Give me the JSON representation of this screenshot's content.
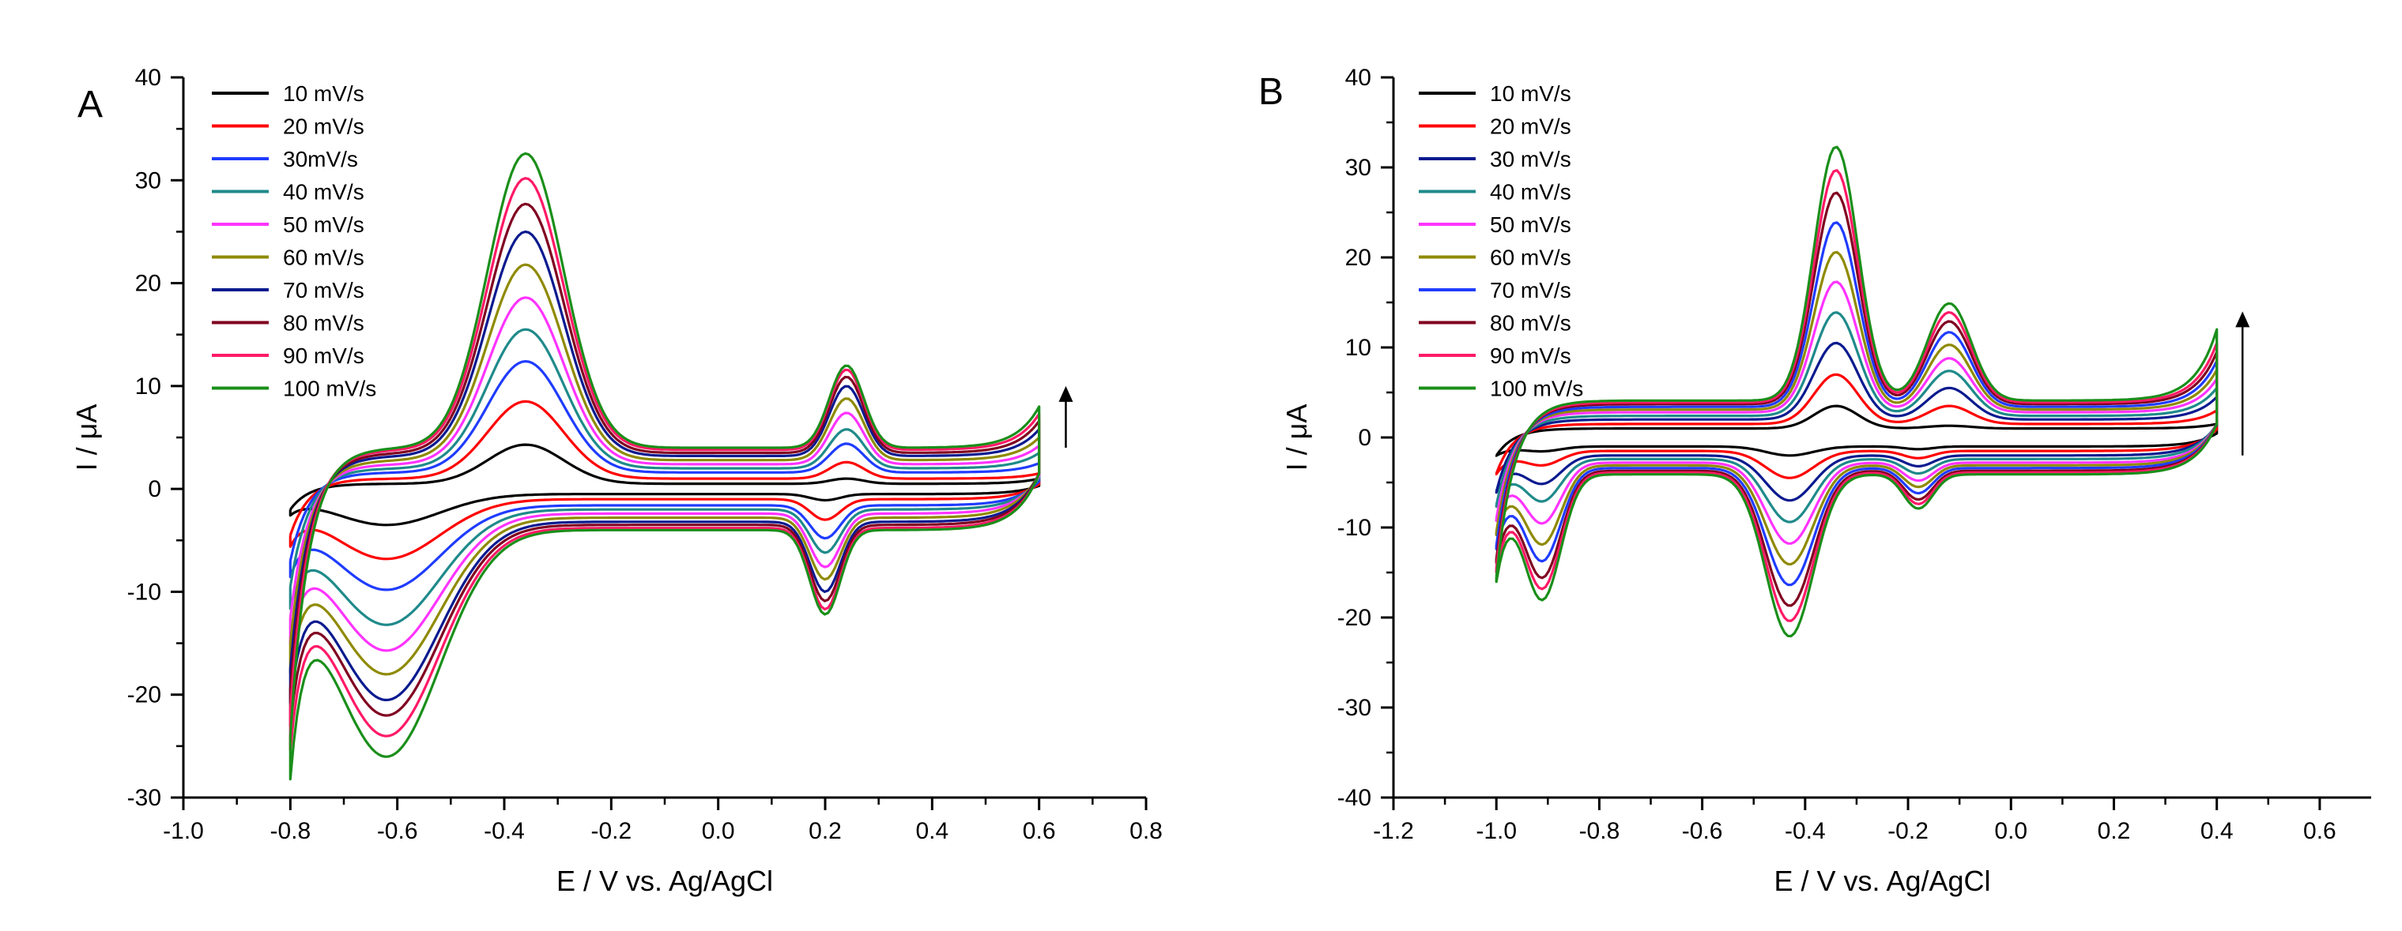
{
  "chart_data": [
    {
      "type": "line",
      "panel_label": "A",
      "xlabel": "E / V vs. Ag/AgCl",
      "ylabel": "I / μA",
      "xlim": [
        -1.0,
        0.8
      ],
      "ylim": [
        -30,
        40
      ],
      "x_ticks": [
        -1.0,
        -0.8,
        -0.6,
        -0.4,
        -0.2,
        0.0,
        0.2,
        0.4,
        0.6,
        0.8
      ],
      "x_tick_labels": [
        "-1.0",
        "-0.8",
        "-0.6",
        "-0.4",
        "-0.2",
        "0.0",
        "0.2",
        "0.4",
        "0.6",
        "0.8"
      ],
      "y_ticks": [
        -30,
        -20,
        -10,
        0,
        10,
        20,
        30,
        40
      ],
      "y_tick_labels": [
        "-30",
        "-20",
        "-10",
        "0",
        "10",
        "20",
        "30",
        "40"
      ],
      "legend_position": "top-left",
      "annotation": "arrow up: increasing scan rate",
      "arrow": {
        "x": 0.65,
        "y_from": 4,
        "y_to": 10
      },
      "potential_window": [
        -0.8,
        0.6
      ],
      "peaks": {
        "anodic_1": {
          "E": -0.36,
          "width": 0.1
        },
        "anodic_2": {
          "E": 0.24,
          "width": 0.045
        },
        "cathodic_1": {
          "E": -0.62,
          "width": 0.14
        },
        "cathodic_2": {
          "E": 0.2,
          "width": 0.04
        }
      },
      "series": [
        {
          "name": "10 mV/s",
          "color": "#000000",
          "cap": 0.5,
          "anodic_1": 3.8,
          "anodic_2": 0.5,
          "cathodic_1": -3.0,
          "cathodic_2": -0.6,
          "start_i": -2.0,
          "end_i": 1.0
        },
        {
          "name": "20 mV/s",
          "color": "#ff0000",
          "cap": 1.0,
          "anodic_1": 7.5,
          "anodic_2": 1.6,
          "cathodic_1": -5.8,
          "cathodic_2": -2.0,
          "start_i": -4.5,
          "end_i": 1.5
        },
        {
          "name": "30mV/s",
          "color": "#1f3cff",
          "cap": 1.6,
          "anodic_1": 10.8,
          "anodic_2": 2.8,
          "cathodic_1": -8.2,
          "cathodic_2": -3.2,
          "start_i": -7.0,
          "end_i": 2.5
        },
        {
          "name": "40 mV/s",
          "color": "#1f8a8a",
          "cap": 2.0,
          "anodic_1": 13.5,
          "anodic_2": 3.8,
          "cathodic_1": -11.2,
          "cathodic_2": -4.2,
          "start_i": -9.5,
          "end_i": 3.5
        },
        {
          "name": "50 mV/s",
          "color": "#ff33ff",
          "cap": 2.4,
          "anodic_1": 16.2,
          "anodic_2": 5.0,
          "cathodic_1": -13.3,
          "cathodic_2": -5.2,
          "start_i": -12.5,
          "end_i": 4.2
        },
        {
          "name": "60 mV/s",
          "color": "#8f8a00",
          "cap": 2.8,
          "anodic_1": 19.0,
          "anodic_2": 6.0,
          "cathodic_1": -15.2,
          "cathodic_2": -6.0,
          "start_i": -15.0,
          "end_i": 5.0
        },
        {
          "name": "70 mV/s",
          "color": "#0a1a8f",
          "cap": 3.2,
          "anodic_1": 21.8,
          "anodic_2": 6.8,
          "cathodic_1": -17.3,
          "cathodic_2": -6.8,
          "start_i": -17.5,
          "end_i": 5.8
        },
        {
          "name": "80 mV/s",
          "color": "#800020",
          "cap": 3.5,
          "anodic_1": 24.2,
          "anodic_2": 7.4,
          "cathodic_1": -18.5,
          "cathodic_2": -7.4,
          "start_i": -19.5,
          "end_i": 6.6
        },
        {
          "name": "90 mV/s",
          "color": "#ff1a66",
          "cap": 3.8,
          "anodic_1": 26.4,
          "anodic_2": 7.8,
          "cathodic_1": -20.2,
          "cathodic_2": -7.9,
          "start_i": -21.5,
          "end_i": 7.3
        },
        {
          "name": "100 mV/s",
          "color": "#1a8f1a",
          "cap": 4.0,
          "anodic_1": 28.6,
          "anodic_2": 8.0,
          "cathodic_1": -22.0,
          "cathodic_2": -8.2,
          "start_i": -24.0,
          "end_i": 8.0
        }
      ]
    },
    {
      "type": "line",
      "panel_label": "B",
      "xlabel": "E / V vs. Ag/AgCl",
      "ylabel": "I / μA",
      "xlim": [
        -1.2,
        0.7
      ],
      "ylim": [
        -40,
        40
      ],
      "x_ticks": [
        -1.2,
        -1.0,
        -0.8,
        -0.6,
        -0.4,
        -0.2,
        0.0,
        0.2,
        0.4,
        0.6
      ],
      "x_tick_labels": [
        "-1.2",
        "-1.0",
        "-0.8",
        "-0.6",
        "-0.4",
        "-0.2",
        "0.0",
        "0.2",
        "0.4",
        "0.6"
      ],
      "y_ticks": [
        -40,
        -30,
        -20,
        -10,
        0,
        10,
        20,
        30,
        40
      ],
      "y_tick_labels": [
        "-40",
        "-30",
        "-20",
        "-10",
        "0",
        "10",
        "20",
        "30",
        "40"
      ],
      "legend_position": "top-left",
      "annotation": "arrow up: increasing scan rate",
      "arrow": {
        "x": 0.45,
        "y_from": -2,
        "y_to": 14
      },
      "potential_window": [
        -1.0,
        0.4
      ],
      "peaks": {
        "anodic_1": {
          "E": -0.34,
          "width": 0.06
        },
        "anodic_2": {
          "E": -0.12,
          "width": 0.06
        },
        "cathodic_1": {
          "E": -0.43,
          "width": 0.065
        },
        "cathodic_2": {
          "E": -0.91,
          "width": 0.05
        },
        "cathodic_3": {
          "E": -0.18,
          "width": 0.04
        }
      },
      "series": [
        {
          "name": "10 mV/s",
          "color": "#000000",
          "cap": 1.0,
          "anodic_1": 2.5,
          "anodic_2": 0.3,
          "cathodic_1": -1.0,
          "cathodic_2": -0.5,
          "cathodic_3": -0.3,
          "start_i": -2.0,
          "end_i": 1.5
        },
        {
          "name": "20 mV/s",
          "color": "#ff0000",
          "cap": 1.5,
          "anodic_1": 5.5,
          "anodic_2": 2.0,
          "cathodic_1": -3.0,
          "cathodic_2": -1.5,
          "cathodic_3": -0.8,
          "start_i": -4.0,
          "end_i": 3.0
        },
        {
          "name": "30 mV/s",
          "color": "#0a1a8f",
          "cap": 2.0,
          "anodic_1": 8.5,
          "anodic_2": 3.5,
          "cathodic_1": -5.0,
          "cathodic_2": -3.0,
          "cathodic_3": -1.2,
          "start_i": -6.0,
          "end_i": 4.5
        },
        {
          "name": "40 mV/s",
          "color": "#1f8a8a",
          "cap": 2.4,
          "anodic_1": 11.5,
          "anodic_2": 5.0,
          "cathodic_1": -7.0,
          "cathodic_2": -4.5,
          "cathodic_3": -1.6,
          "start_i": -7.5,
          "end_i": 5.5
        },
        {
          "name": "50 mV/s",
          "color": "#ff33ff",
          "cap": 2.8,
          "anodic_1": 14.5,
          "anodic_2": 6.0,
          "cathodic_1": -9.0,
          "cathodic_2": -6.5,
          "cathodic_3": -2.0,
          "start_i": -9.0,
          "end_i": 6.5
        },
        {
          "name": "60 mV/s",
          "color": "#8f8a00",
          "cap": 3.1,
          "anodic_1": 17.5,
          "anodic_2": 7.2,
          "cathodic_1": -11.0,
          "cathodic_2": -8.5,
          "cathodic_3": -2.4,
          "start_i": -10.5,
          "end_i": 7.5
        },
        {
          "name": "70 mV/s",
          "color": "#1f3cff",
          "cap": 3.4,
          "anodic_1": 20.5,
          "anodic_2": 8.3,
          "cathodic_1": -13.0,
          "cathodic_2": -10.0,
          "cathodic_3": -2.8,
          "start_i": -12.0,
          "end_i": 8.5
        },
        {
          "name": "80 mV/s",
          "color": "#800020",
          "cap": 3.7,
          "anodic_1": 23.5,
          "anodic_2": 9.2,
          "cathodic_1": -15.0,
          "cathodic_2": -11.5,
          "cathodic_3": -3.2,
          "start_i": -13.5,
          "end_i": 9.5
        },
        {
          "name": "90 mV/s",
          "color": "#ff1a66",
          "cap": 3.9,
          "anodic_1": 25.8,
          "anodic_2": 10.0,
          "cathodic_1": -16.5,
          "cathodic_2": -12.5,
          "cathodic_3": -3.5,
          "start_i": -14.5,
          "end_i": 10.5
        },
        {
          "name": "100 mV/s",
          "color": "#1a8f1a",
          "cap": 4.1,
          "anodic_1": 28.2,
          "anodic_2": 10.8,
          "cathodic_1": -18.0,
          "cathodic_2": -13.5,
          "cathodic_3": -3.8,
          "start_i": -15.5,
          "end_i": 12.0
        }
      ]
    }
  ]
}
